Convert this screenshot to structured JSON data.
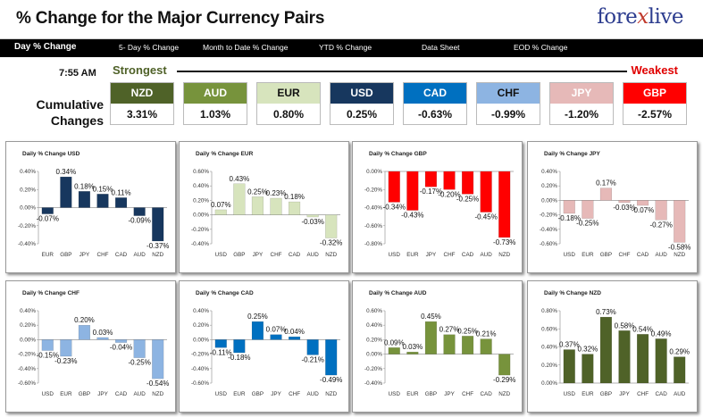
{
  "header": {
    "title": "% Change for the Major Currency Pairs",
    "logo_left": "fore",
    "logo_x": "x",
    "logo_right": "live"
  },
  "nav": [
    {
      "label": "Day % Change",
      "active": true
    },
    {
      "label": "5- Day % Change"
    },
    {
      "label": "Month to Date % Change"
    },
    {
      "label": "YTD % Change"
    },
    {
      "label": "Data Sheet"
    },
    {
      "label": "EOD % Change"
    }
  ],
  "time": "7:55 AM",
  "strongest_label": "Strongest",
  "weakest_label": "Weakest",
  "cumulative_label_1": "Cumulative",
  "cumulative_label_2": "Changes",
  "currencies": [
    {
      "code": "NZD",
      "value": "3.31%",
      "color": "#4f6228",
      "text": "#ffffff"
    },
    {
      "code": "AUD",
      "value": "1.03%",
      "color": "#77933c",
      "text": "#ffffff"
    },
    {
      "code": "EUR",
      "value": "0.80%",
      "color": "#d7e4bd",
      "text": "#111111"
    },
    {
      "code": "USD",
      "value": "0.25%",
      "color": "#17375e",
      "text": "#ffffff"
    },
    {
      "code": "CAD",
      "value": "-0.63%",
      "color": "#0070c0",
      "text": "#ffffff"
    },
    {
      "code": "CHF",
      "value": "-0.99%",
      "color": "#8db4e2",
      "text": "#111111"
    },
    {
      "code": "JPY",
      "value": "-1.20%",
      "color": "#e6b9b8",
      "text": "#ffffff"
    },
    {
      "code": "GBP",
      "value": "-2.57%",
      "color": "#ff0000",
      "text": "#ffffff"
    }
  ],
  "chart_data": [
    {
      "type": "bar",
      "title": "Daily % Change USD",
      "categories": [
        "EUR",
        "GBP",
        "JPY",
        "CHF",
        "CAD",
        "AUD",
        "NZD"
      ],
      "values": [
        -0.07,
        0.34,
        0.18,
        0.15,
        0.11,
        -0.09,
        -0.37
      ],
      "labels": [
        "-0.07%",
        "0.34%",
        "0.18%",
        "0.15%",
        "0.11%",
        "-0.09%",
        "-0.37%"
      ],
      "ylim": [
        -0.4,
        0.4
      ],
      "yticks": [
        "0.40%",
        "0.20%",
        "0.00%",
        "-0.20%",
        "-0.40%"
      ],
      "ytick_values": [
        0.4,
        0.2,
        0,
        -0.2,
        -0.4
      ],
      "colors": [
        "#17375e",
        "#17375e",
        "#17375e",
        "#17375e",
        "#17375e",
        "#17375e",
        "#17375e"
      ]
    },
    {
      "type": "bar",
      "title": "Daily % Change EUR",
      "categories": [
        "USD",
        "GBP",
        "JPY",
        "CHF",
        "CAD",
        "AUD",
        "NZD"
      ],
      "values": [
        0.07,
        0.43,
        0.25,
        0.23,
        0.18,
        -0.03,
        -0.32
      ],
      "labels": [
        "0.07%",
        "0.43%",
        "0.25%",
        "0.23%",
        "0.18%",
        "-0.03%",
        "-0.32%"
      ],
      "ylim": [
        -0.4,
        0.6
      ],
      "yticks": [
        "0.60%",
        "0.40%",
        "0.20%",
        "0.00%",
        "-0.20%",
        "-0.40%"
      ],
      "ytick_values": [
        0.6,
        0.4,
        0.2,
        0,
        -0.2,
        -0.4
      ],
      "colors": [
        "#d7e4bd",
        "#d7e4bd",
        "#d7e4bd",
        "#d7e4bd",
        "#d7e4bd",
        "#d7e4bd",
        "#d7e4bd"
      ]
    },
    {
      "type": "bar",
      "title": "Daily % Change GBP",
      "categories": [
        "USD",
        "EUR",
        "JPY",
        "CHF",
        "CAD",
        "AUD",
        "NZD"
      ],
      "values": [
        -0.34,
        -0.43,
        -0.17,
        -0.2,
        -0.25,
        -0.45,
        -0.73
      ],
      "labels": [
        "-0.34%",
        "-0.43%",
        "-0.17%",
        "-0.20%",
        "-0.25%",
        "-0.45%",
        "-0.73%"
      ],
      "ylim": [
        -0.8,
        0
      ],
      "yticks": [
        "0.00%",
        "-0.20%",
        "-0.40%",
        "-0.60%",
        "-0.80%"
      ],
      "ytick_values": [
        0,
        -0.2,
        -0.4,
        -0.6,
        -0.8
      ],
      "colors": [
        "#ff0000",
        "#ff0000",
        "#ff0000",
        "#ff0000",
        "#ff0000",
        "#ff0000",
        "#ff0000"
      ]
    },
    {
      "type": "bar",
      "title": "Daily % Change JPY",
      "categories": [
        "USD",
        "EUR",
        "GBP",
        "CHF",
        "CAD",
        "AUD",
        "NZD"
      ],
      "values": [
        -0.18,
        -0.25,
        0.17,
        -0.03,
        -0.07,
        -0.27,
        -0.58
      ],
      "labels": [
        "-0.18%",
        "-0.25%",
        "0.17%",
        "-0.03%",
        "-0.07%",
        "-0.27%",
        "-0.58%"
      ],
      "ylim": [
        -0.6,
        0.4
      ],
      "yticks": [
        "0.40%",
        "0.20%",
        "0.00%",
        "-0.20%",
        "-0.40%",
        "-0.60%"
      ],
      "ytick_values": [
        0.4,
        0.2,
        0,
        -0.2,
        -0.4,
        -0.6
      ],
      "colors": [
        "#e6b9b8",
        "#e6b9b8",
        "#e6b9b8",
        "#e6b9b8",
        "#e6b9b8",
        "#e6b9b8",
        "#e6b9b8"
      ]
    },
    {
      "type": "bar",
      "title": "Daily % Change CHF",
      "categories": [
        "USD",
        "EUR",
        "GBP",
        "JPY",
        "CAD",
        "AUD",
        "NZD"
      ],
      "values": [
        -0.15,
        -0.23,
        0.2,
        0.03,
        -0.04,
        -0.25,
        -0.54
      ],
      "labels": [
        "-0.15%",
        "-0.23%",
        "0.20%",
        "0.03%",
        "-0.04%",
        "-0.25%",
        "-0.54%"
      ],
      "ylim": [
        -0.6,
        0.4
      ],
      "yticks": [
        "0.40%",
        "0.20%",
        "0.00%",
        "-0.20%",
        "-0.40%",
        "-0.60%"
      ],
      "ytick_values": [
        0.4,
        0.2,
        0,
        -0.2,
        -0.4,
        -0.6
      ],
      "colors": [
        "#8db4e2",
        "#8db4e2",
        "#8db4e2",
        "#8db4e2",
        "#8db4e2",
        "#8db4e2",
        "#8db4e2"
      ]
    },
    {
      "type": "bar",
      "title": "Daily % Change CAD",
      "categories": [
        "USD",
        "EUR",
        "GBP",
        "JPY",
        "CHF",
        "AUD",
        "NZD"
      ],
      "values": [
        -0.11,
        -0.18,
        0.25,
        0.07,
        0.04,
        -0.21,
        -0.49
      ],
      "labels": [
        "-0.11%",
        "-0.18%",
        "0.25%",
        "0.07%",
        "0.04%",
        "-0.21%",
        "-0.49%"
      ],
      "ylim": [
        -0.6,
        0.4
      ],
      "yticks": [
        "0.40%",
        "0.20%",
        "0.00%",
        "-0.20%",
        "-0.40%",
        "-0.60%"
      ],
      "ytick_values": [
        0.4,
        0.2,
        0,
        -0.2,
        -0.4,
        -0.6
      ],
      "colors": [
        "#0070c0",
        "#0070c0",
        "#0070c0",
        "#0070c0",
        "#0070c0",
        "#0070c0",
        "#0070c0"
      ]
    },
    {
      "type": "bar",
      "title": "Daily % Change AUD",
      "categories": [
        "USD",
        "EUR",
        "GBP",
        "JPY",
        "CHF",
        "CAD",
        "NZD"
      ],
      "values": [
        0.09,
        0.03,
        0.45,
        0.27,
        0.25,
        0.21,
        -0.29
      ],
      "labels": [
        "0.09%",
        "0.03%",
        "0.45%",
        "0.27%",
        "0.25%",
        "0.21%",
        "-0.29%"
      ],
      "ylim": [
        -0.4,
        0.6
      ],
      "yticks": [
        "0.60%",
        "0.40%",
        "0.20%",
        "0.00%",
        "-0.20%",
        "-0.40%"
      ],
      "ytick_values": [
        0.6,
        0.4,
        0.2,
        0,
        -0.2,
        -0.4
      ],
      "colors": [
        "#77933c",
        "#77933c",
        "#77933c",
        "#77933c",
        "#77933c",
        "#77933c",
        "#77933c"
      ]
    },
    {
      "type": "bar",
      "title": "Daily % Change NZD",
      "categories": [
        "USD",
        "EUR",
        "GBP",
        "JPY",
        "CHF",
        "CAD",
        "AUD"
      ],
      "values": [
        0.37,
        0.32,
        0.73,
        0.58,
        0.54,
        0.49,
        0.29
      ],
      "labels": [
        "0.37%",
        "0.32%",
        "0.73%",
        "0.58%",
        "0.54%",
        "0.49%",
        "0.29%"
      ],
      "ylim": [
        0,
        0.8
      ],
      "yticks": [
        "0.80%",
        "0.60%",
        "0.40%",
        "0.20%",
        "0.00%"
      ],
      "ytick_values": [
        0.8,
        0.6,
        0.4,
        0.2,
        0
      ],
      "colors": [
        "#4f6228",
        "#4f6228",
        "#4f6228",
        "#4f6228",
        "#4f6228",
        "#4f6228",
        "#4f6228"
      ]
    }
  ]
}
